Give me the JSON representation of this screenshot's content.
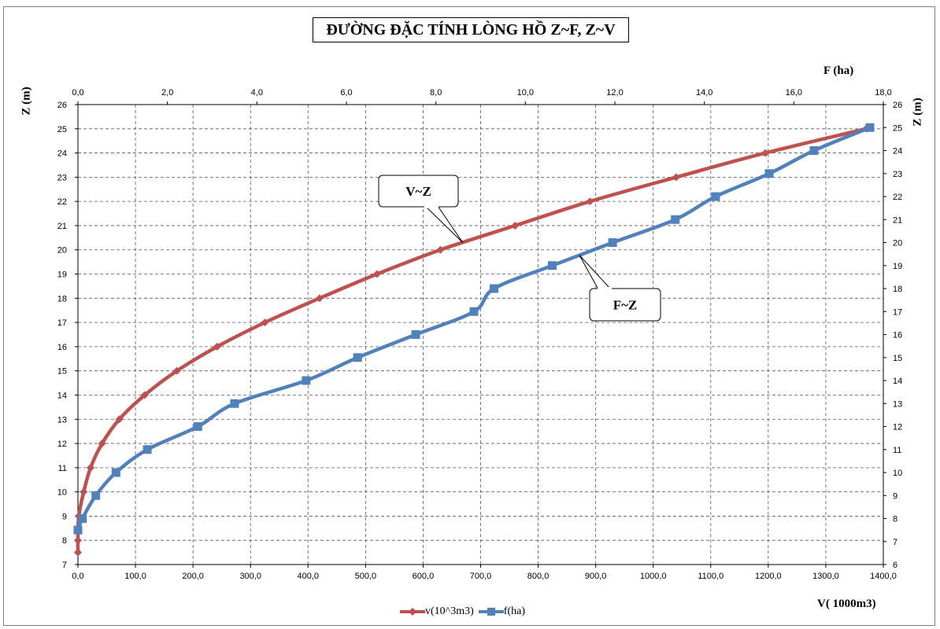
{
  "chart_data": {
    "type": "line",
    "title": "ĐƯỜNG ĐẶC TÍNH LÒNG HỒ Z~F, Z~V",
    "x_bottom": {
      "label": "V( 1000m3)",
      "range": [
        0,
        1400
      ],
      "ticks": [
        "0,0",
        "100,0",
        "200,0",
        "300,0",
        "400,0",
        "500,0",
        "600,0",
        "700,0",
        "800,0",
        "900,0",
        "1000,0",
        "1100,0",
        "1200,0",
        "1300,0",
        "1400,0"
      ]
    },
    "x_top": {
      "label": "F (ha)",
      "range": [
        0,
        18
      ],
      "ticks": [
        "0,0",
        "2,0",
        "4,0",
        "6,0",
        "8,0",
        "10,0",
        "12,0",
        "14,0",
        "16,0",
        "18,0"
      ]
    },
    "y_left": {
      "label": "Z (m)",
      "range": [
        7,
        26
      ],
      "ticks": [
        "7",
        "8",
        "9",
        "10",
        "11",
        "12",
        "13",
        "14",
        "15",
        "16",
        "17",
        "18",
        "19",
        "20",
        "21",
        "22",
        "23",
        "24",
        "25",
        "26"
      ]
    },
    "y_right": {
      "label": "Z (m)",
      "range": [
        6,
        26
      ],
      "ticks": [
        "6",
        "7",
        "8",
        "9",
        "10",
        "11",
        "12",
        "13",
        "14",
        "15",
        "16",
        "17",
        "18",
        "19",
        "20",
        "21",
        "22",
        "23",
        "24",
        "25",
        "26"
      ]
    },
    "grid": true,
    "legend_position": "bottom",
    "series": [
      {
        "name": "v(10^3m3)",
        "axis": "bottom-left",
        "color": "#c0504d",
        "marker": "diamond",
        "x": [
          0,
          0,
          1.5,
          10,
          22,
          42,
          72,
          116,
          172,
          242,
          325,
          420,
          520,
          630,
          760,
          890,
          1040,
          1195,
          1370
        ],
        "y": [
          7.5,
          8,
          9,
          10,
          11,
          12,
          13,
          14,
          15,
          16,
          17,
          18,
          19,
          20,
          21,
          22,
          23,
          24,
          25
        ]
      },
      {
        "name": "f(ha)",
        "axis": "top-right",
        "color": "#4f81bd",
        "marker": "square",
        "x": [
          0,
          0.1,
          0.4,
          0.85,
          1.55,
          2.68,
          3.5,
          5.1,
          6.25,
          7.55,
          8.85,
          9.3,
          10.6,
          11.95,
          13.35,
          14.25,
          15.45,
          16.45,
          17.7
        ],
        "y": [
          7.5,
          8,
          9,
          10,
          11,
          12,
          13,
          14,
          15,
          16,
          17,
          18,
          19,
          20,
          21,
          22,
          23,
          24,
          25
        ]
      }
    ],
    "annotations": [
      {
        "text": "V~Z",
        "series": "v(10^3m3)"
      },
      {
        "text": "F~Z",
        "series": "f(ha)"
      }
    ]
  }
}
